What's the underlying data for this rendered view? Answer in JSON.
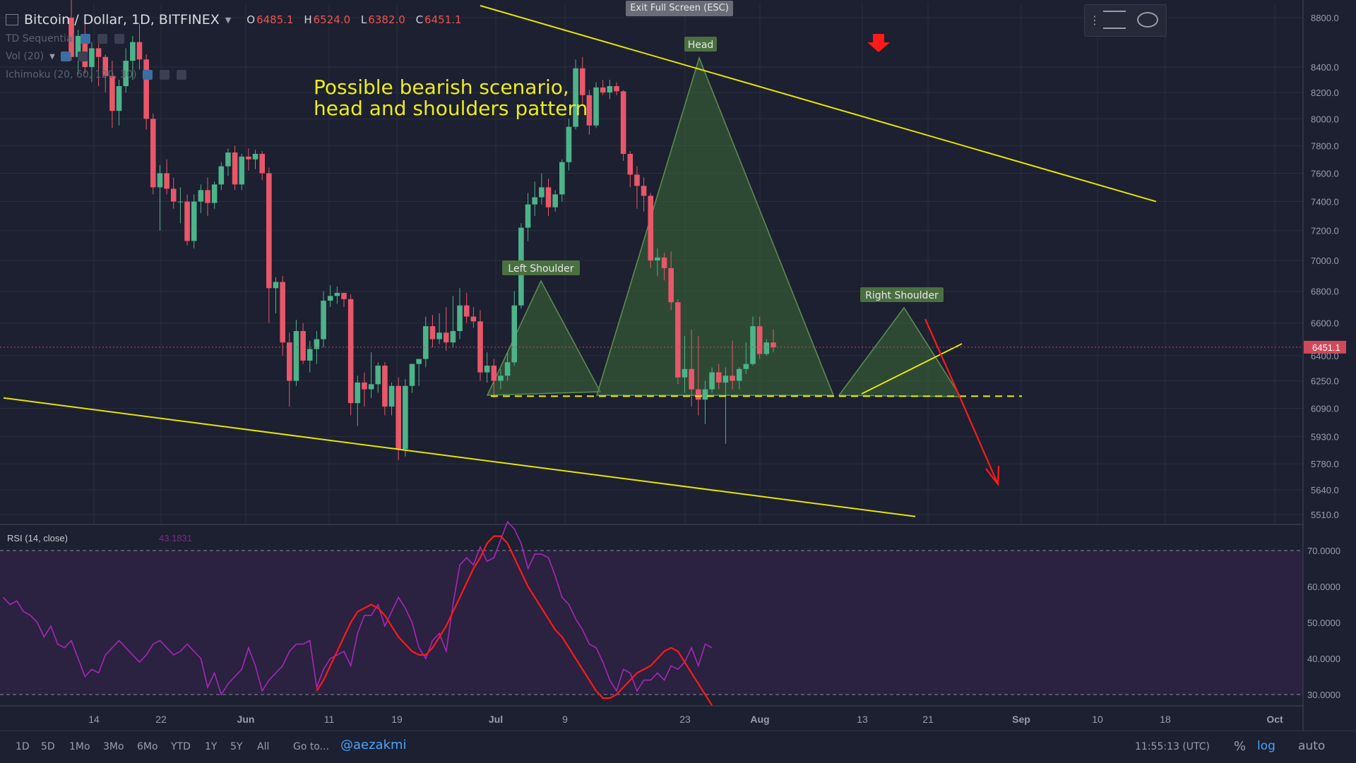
{
  "header": {
    "symbol_title": "Bitcoin / Dollar, 1D, BITFINEX",
    "ohlc": [
      {
        "label": "O",
        "value": "6485.1"
      },
      {
        "label": "H",
        "value": "6524.0"
      },
      {
        "label": "L",
        "value": "6382.0"
      },
      {
        "label": "C",
        "value": "6451.1"
      }
    ],
    "indicators": [
      "TD Sequential",
      "Vol (20)",
      "Ichimoku (20, 60, 120, 30)"
    ],
    "exit_fullscreen_label": "Exit Full Screen (ESC)"
  },
  "annotation": {
    "line1": "Possible bearish scenario,",
    "line2": "head and shoulders pattern"
  },
  "pattern_labels": {
    "left": "Left Shoulder",
    "head": "Head",
    "right": "Right Shoulder"
  },
  "price_axis": {
    "ticks": [
      "8800.0",
      "8400.0",
      "8200.0",
      "8000.0",
      "7800.0",
      "7600.0",
      "7400.0",
      "7200.0",
      "7000.0",
      "6800.0",
      "6600.0",
      "6400.0",
      "6250.0",
      "6090.0",
      "5930.0",
      "5780.0",
      "5640.0",
      "5510.0"
    ],
    "current_price": "6451.1"
  },
  "rsi": {
    "label": "RSI (14, close)",
    "value": "43.1831",
    "ticks": [
      "70.0000",
      "60.0000",
      "50.0000",
      "40.0000",
      "30.0000"
    ]
  },
  "time_axis": {
    "ticks": [
      "14",
      "22",
      "Jun",
      "11",
      "19",
      "Jul",
      "9",
      "23",
      "Aug",
      "13",
      "21",
      "Sep",
      "10",
      "18",
      "Oct"
    ]
  },
  "bottom_bar": {
    "ranges": [
      "1D",
      "5D",
      "1Mo",
      "3Mo",
      "6Mo",
      "YTD",
      "1Y",
      "5Y",
      "All"
    ],
    "goto": "Go to...",
    "author": "@aezakmi",
    "time": "11:55:13 (UTC)",
    "percent": "%",
    "log": "log",
    "auto": "auto"
  },
  "colors": {
    "background": "#1c2030",
    "bull": "#4db38a",
    "bear": "#e8576a",
    "trendline": "#e5e500",
    "pattern_fill": "#3d6b38",
    "rsi_line": "#a629b8",
    "projection": "#ff1a1a"
  },
  "chart_data": {
    "type": "candlestick",
    "symbol": "Bitcoin / Dollar, 1D, BITFINEX",
    "x_ticks": [
      "14",
      "22",
      "Jun",
      "11",
      "19",
      "Jul",
      "9",
      "23",
      "Aug",
      "13",
      "21",
      "Sep",
      "10",
      "18",
      "Oct"
    ],
    "y_ticks": [
      8800,
      8400,
      8200,
      8000,
      7800,
      7600,
      7400,
      7200,
      7000,
      6800,
      6600,
      6400,
      6250,
      6090,
      5930,
      5780,
      5640,
      5510
    ],
    "y_scale": "log",
    "last_close": 6451.1,
    "neckline": 6160,
    "candles": [
      {
        "o": 8800,
        "h": 9000,
        "l": 8450,
        "c": 8480
      },
      {
        "o": 8480,
        "h": 8700,
        "l": 8350,
        "c": 8650
      },
      {
        "o": 8650,
        "h": 8750,
        "l": 8350,
        "c": 8400
      },
      {
        "o": 8400,
        "h": 8600,
        "l": 8280,
        "c": 8550
      },
      {
        "o": 8550,
        "h": 8650,
        "l": 8250,
        "c": 8480
      },
      {
        "o": 8480,
        "h": 8500,
        "l": 8200,
        "c": 8330
      },
      {
        "o": 8330,
        "h": 8450,
        "l": 7930,
        "c": 8060
      },
      {
        "o": 8060,
        "h": 8300,
        "l": 7950,
        "c": 8250
      },
      {
        "o": 8250,
        "h": 8550,
        "l": 8200,
        "c": 8450
      },
      {
        "o": 8450,
        "h": 8650,
        "l": 8300,
        "c": 8600
      },
      {
        "o": 8600,
        "h": 8750,
        "l": 8380,
        "c": 8460
      },
      {
        "o": 8460,
        "h": 8500,
        "l": 7920,
        "c": 8000
      },
      {
        "o": 8000,
        "h": 8040,
        "l": 7450,
        "c": 7500
      },
      {
        "o": 7500,
        "h": 7660,
        "l": 7200,
        "c": 7600
      },
      {
        "o": 7600,
        "h": 7700,
        "l": 7450,
        "c": 7490
      },
      {
        "o": 7490,
        "h": 7570,
        "l": 7350,
        "c": 7400
      },
      {
        "o": 7400,
        "h": 7500,
        "l": 7250,
        "c": 7400
      },
      {
        "o": 7400,
        "h": 7450,
        "l": 7100,
        "c": 7130
      },
      {
        "o": 7130,
        "h": 7450,
        "l": 7080,
        "c": 7400
      },
      {
        "o": 7400,
        "h": 7520,
        "l": 7320,
        "c": 7480
      },
      {
        "o": 7480,
        "h": 7570,
        "l": 7300,
        "c": 7390
      },
      {
        "o": 7390,
        "h": 7540,
        "l": 7350,
        "c": 7520
      },
      {
        "o": 7520,
        "h": 7680,
        "l": 7480,
        "c": 7650
      },
      {
        "o": 7650,
        "h": 7780,
        "l": 7580,
        "c": 7750
      },
      {
        "o": 7750,
        "h": 7800,
        "l": 7480,
        "c": 7520
      },
      {
        "o": 7520,
        "h": 7740,
        "l": 7480,
        "c": 7720
      },
      {
        "o": 7720,
        "h": 7780,
        "l": 7620,
        "c": 7700
      },
      {
        "o": 7700,
        "h": 7770,
        "l": 7630,
        "c": 7740
      },
      {
        "o": 7740,
        "h": 7760,
        "l": 7550,
        "c": 7600
      },
      {
        "o": 7600,
        "h": 7640,
        "l": 6600,
        "c": 6820
      },
      {
        "o": 6820,
        "h": 6890,
        "l": 6660,
        "c": 6860
      },
      {
        "o": 6860,
        "h": 6900,
        "l": 6400,
        "c": 6480
      },
      {
        "o": 6480,
        "h": 6540,
        "l": 6100,
        "c": 6250
      },
      {
        "o": 6250,
        "h": 6620,
        "l": 6220,
        "c": 6550
      },
      {
        "o": 6550,
        "h": 6600,
        "l": 6350,
        "c": 6370
      },
      {
        "o": 6370,
        "h": 6490,
        "l": 6300,
        "c": 6440
      },
      {
        "o": 6440,
        "h": 6550,
        "l": 6350,
        "c": 6500
      },
      {
        "o": 6500,
        "h": 6800,
        "l": 6450,
        "c": 6740
      },
      {
        "o": 6740,
        "h": 6840,
        "l": 6700,
        "c": 6770
      },
      {
        "o": 6770,
        "h": 6830,
        "l": 6720,
        "c": 6790
      },
      {
        "o": 6790,
        "h": 6790,
        "l": 6700,
        "c": 6750
      },
      {
        "o": 6750,
        "h": 6780,
        "l": 6050,
        "c": 6120
      },
      {
        "o": 6120,
        "h": 6280,
        "l": 5990,
        "c": 6240
      },
      {
        "o": 6240,
        "h": 6300,
        "l": 6100,
        "c": 6200
      },
      {
        "o": 6200,
        "h": 6420,
        "l": 6150,
        "c": 6230
      },
      {
        "o": 6230,
        "h": 6360,
        "l": 6180,
        "c": 6340
      },
      {
        "o": 6340,
        "h": 6360,
        "l": 6050,
        "c": 6100
      },
      {
        "o": 6100,
        "h": 6240,
        "l": 6050,
        "c": 6220
      },
      {
        "o": 6220,
        "h": 6270,
        "l": 5800,
        "c": 5860
      },
      {
        "o": 5860,
        "h": 6260,
        "l": 5820,
        "c": 6220
      },
      {
        "o": 6220,
        "h": 6350,
        "l": 6180,
        "c": 6350
      },
      {
        "o": 6350,
        "h": 6380,
        "l": 6220,
        "c": 6380
      },
      {
        "o": 6380,
        "h": 6640,
        "l": 6330,
        "c": 6580
      },
      {
        "o": 6580,
        "h": 6650,
        "l": 6450,
        "c": 6500
      },
      {
        "o": 6500,
        "h": 6660,
        "l": 6470,
        "c": 6540
      },
      {
        "o": 6540,
        "h": 6700,
        "l": 6430,
        "c": 6480
      },
      {
        "o": 6480,
        "h": 6770,
        "l": 6450,
        "c": 6550
      },
      {
        "o": 6550,
        "h": 6820,
        "l": 6500,
        "c": 6710
      },
      {
        "o": 6710,
        "h": 6790,
        "l": 6600,
        "c": 6640
      },
      {
        "o": 6640,
        "h": 6700,
        "l": 6570,
        "c": 6610
      },
      {
        "o": 6610,
        "h": 6680,
        "l": 6250,
        "c": 6300
      },
      {
        "o": 6300,
        "h": 6420,
        "l": 6240,
        "c": 6340
      },
      {
        "o": 6340,
        "h": 6380,
        "l": 6150,
        "c": 6250
      },
      {
        "o": 6250,
        "h": 6320,
        "l": 6200,
        "c": 6280
      },
      {
        "o": 6280,
        "h": 6420,
        "l": 6250,
        "c": 6360
      },
      {
        "o": 6360,
        "h": 6800,
        "l": 6340,
        "c": 6710
      },
      {
        "o": 6710,
        "h": 7250,
        "l": 6690,
        "c": 7220
      },
      {
        "o": 7220,
        "h": 7460,
        "l": 7130,
        "c": 7380
      },
      {
        "o": 7380,
        "h": 7540,
        "l": 7300,
        "c": 7430
      },
      {
        "o": 7430,
        "h": 7600,
        "l": 7380,
        "c": 7500
      },
      {
        "o": 7500,
        "h": 7560,
        "l": 7300,
        "c": 7360
      },
      {
        "o": 7360,
        "h": 7480,
        "l": 7330,
        "c": 7450
      },
      {
        "o": 7450,
        "h": 7700,
        "l": 7400,
        "c": 7680
      },
      {
        "o": 7680,
        "h": 8000,
        "l": 7620,
        "c": 7940
      },
      {
        "o": 7940,
        "h": 8460,
        "l": 7920,
        "c": 8390
      },
      {
        "o": 8390,
        "h": 8480,
        "l": 8100,
        "c": 8180
      },
      {
        "o": 8180,
        "h": 8220,
        "l": 7880,
        "c": 7950
      },
      {
        "o": 7950,
        "h": 8280,
        "l": 7930,
        "c": 8240
      },
      {
        "o": 8240,
        "h": 8300,
        "l": 8180,
        "c": 8200
      },
      {
        "o": 8200,
        "h": 8300,
        "l": 8150,
        "c": 8250
      },
      {
        "o": 8250,
        "h": 8280,
        "l": 8180,
        "c": 8210
      },
      {
        "o": 8210,
        "h": 8220,
        "l": 7690,
        "c": 7740
      },
      {
        "o": 7740,
        "h": 7760,
        "l": 7500,
        "c": 7590
      },
      {
        "o": 7590,
        "h": 7650,
        "l": 7350,
        "c": 7510
      },
      {
        "o": 7510,
        "h": 7570,
        "l": 7330,
        "c": 7440
      },
      {
        "o": 7440,
        "h": 7460,
        "l": 6950,
        "c": 7000
      },
      {
        "o": 7000,
        "h": 7080,
        "l": 6900,
        "c": 7020
      },
      {
        "o": 7020,
        "h": 7050,
        "l": 6870,
        "c": 6950
      },
      {
        "o": 6950,
        "h": 7060,
        "l": 6680,
        "c": 6730
      },
      {
        "o": 6730,
        "h": 6750,
        "l": 6230,
        "c": 6270
      },
      {
        "o": 6270,
        "h": 6520,
        "l": 6180,
        "c": 6320
      },
      {
        "o": 6320,
        "h": 6560,
        "l": 6100,
        "c": 6200
      },
      {
        "o": 6200,
        "h": 6520,
        "l": 6050,
        "c": 6140
      },
      {
        "o": 6140,
        "h": 6250,
        "l": 6000,
        "c": 6200
      },
      {
        "o": 6200,
        "h": 6330,
        "l": 6180,
        "c": 6300
      },
      {
        "o": 6300,
        "h": 6350,
        "l": 6200,
        "c": 6240
      },
      {
        "o": 6240,
        "h": 6330,
        "l": 5890,
        "c": 6280
      },
      {
        "o": 6280,
        "h": 6490,
        "l": 6200,
        "c": 6250
      },
      {
        "o": 6250,
        "h": 6330,
        "l": 6200,
        "c": 6320
      },
      {
        "o": 6320,
        "h": 6480,
        "l": 6290,
        "c": 6350
      },
      {
        "o": 6350,
        "h": 6640,
        "l": 6340,
        "c": 6580
      },
      {
        "o": 6580,
        "h": 6640,
        "l": 6380,
        "c": 6410
      },
      {
        "o": 6410,
        "h": 6500,
        "l": 6400,
        "c": 6480
      },
      {
        "o": 6480,
        "h": 6560,
        "l": 6420,
        "c": 6450
      }
    ],
    "rsi_series": {
      "name": "RSI (14, close)",
      "value_label": "43.1831",
      "bands": [
        70,
        30
      ],
      "ylim": [
        27,
        75
      ],
      "values": [
        57,
        55,
        56,
        53,
        52,
        50,
        46,
        49,
        44,
        43,
        45,
        40,
        35,
        37,
        36,
        41,
        43,
        45,
        43,
        41,
        39,
        41,
        44,
        45,
        43,
        41,
        42,
        44,
        42,
        40,
        32,
        36,
        30,
        33,
        35,
        37,
        43,
        38,
        31,
        34,
        36,
        38,
        42,
        44,
        44,
        45,
        32,
        37,
        40,
        41,
        42,
        38,
        47,
        52,
        52,
        55,
        49,
        53,
        57,
        54,
        50,
        43,
        40,
        45,
        47,
        42,
        55,
        66,
        68,
        66,
        71,
        67,
        68,
        73,
        78,
        76,
        72,
        65,
        69,
        69,
        68,
        63,
        57,
        55,
        51,
        48,
        44,
        43,
        39,
        34,
        31,
        37,
        36,
        31,
        34,
        34,
        36,
        34,
        38,
        37,
        39,
        43,
        38,
        44,
        43
      ],
      "ma_values": [
        null,
        null,
        null,
        null,
        null,
        null,
        null,
        null,
        null,
        null,
        null,
        null,
        null,
        null,
        null,
        null,
        null,
        null,
        null,
        null,
        null,
        null,
        null,
        null,
        null,
        null,
        null,
        null,
        null,
        null,
        null,
        null,
        null,
        null,
        null,
        null,
        null,
        null,
        null,
        null,
        null,
        null,
        null,
        null,
        null,
        null,
        31,
        34,
        38,
        42,
        46,
        50,
        53,
        54,
        55,
        54,
        52,
        49,
        46,
        44,
        42,
        41,
        41,
        43,
        46,
        49,
        53,
        57,
        61,
        65,
        68,
        72,
        74,
        74,
        72,
        68,
        64,
        60,
        57,
        54,
        51,
        48,
        46,
        43,
        40,
        37,
        34,
        31,
        29,
        29,
        30,
        32,
        34,
        36,
        37,
        38,
        40,
        42,
        43,
        42,
        39,
        36,
        33,
        30,
        27
      ]
    },
    "trendlines": {
      "upper": {
        "from": 8900,
        "to": 7400
      },
      "lower": {
        "from": 6150,
        "to": 5500
      }
    }
  }
}
